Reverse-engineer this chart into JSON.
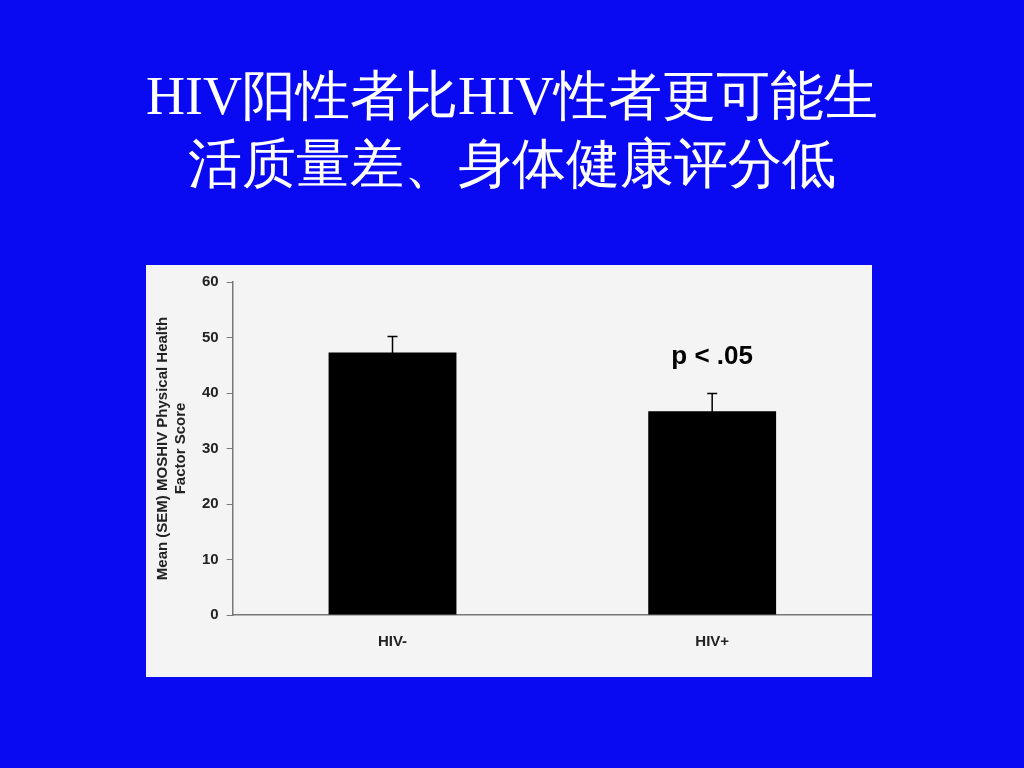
{
  "chart_data": {
    "type": "bar",
    "title": "HIV阳性者比HIV性者更可能生活质量差、身体健康评分低",
    "ylabel": "Mean (SEM) MOSHIV Physical Health\nFactor Score",
    "categories": [
      "HIV-",
      "HIV+"
    ],
    "values": [
      47.3,
      36.7
    ],
    "errors": [
      2.9,
      3.2
    ],
    "color": "#000000",
    "ylim": [
      0,
      60
    ],
    "yticks": [
      0,
      10,
      20,
      30,
      40,
      50,
      60
    ],
    "grid": false,
    "legend": false,
    "annotations": [
      "p < .05"
    ]
  }
}
